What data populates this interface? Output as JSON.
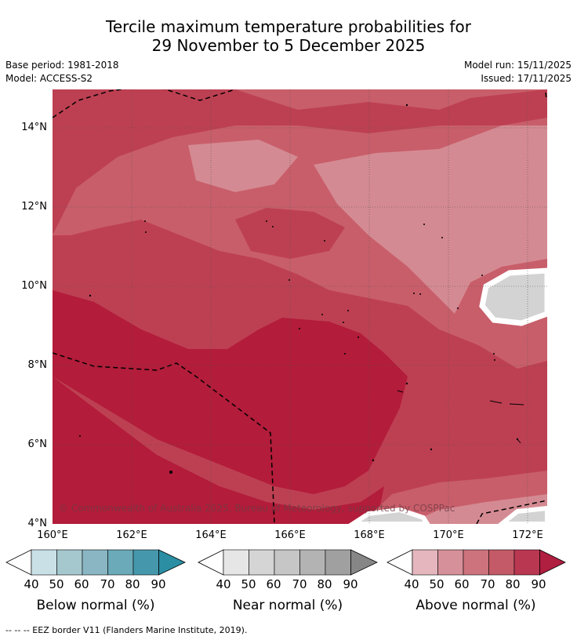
{
  "title": {
    "line1": "Tercile maximum temperature probabilities for",
    "line2": "29 November to 5 December 2025"
  },
  "meta": {
    "base_period": "Base period: 1981-2018",
    "model": "Model: ACCESS-S2",
    "model_run": "Model run: 15/11/2025",
    "issued": "Issued: 17/11/2025"
  },
  "map": {
    "lat_labels": [
      "14°N",
      "12°N",
      "10°N",
      "8°N",
      "6°N",
      "4°N"
    ],
    "lon_labels": [
      "160°E",
      "162°E",
      "164°E",
      "166°E",
      "168°E",
      "170°E",
      "172°E"
    ],
    "extent": {
      "lon_min": 160,
      "lon_max": 172.5,
      "lat_min": 4,
      "lat_max": 15
    },
    "colors": {
      "above_90": "#b31c3a",
      "above_80": "#bd4052",
      "above_70": "#c85e6a",
      "above_60": "#d48a92",
      "near_normal": "#d3d3d3",
      "eez": "#000000"
    },
    "copyright": "© Commonwealth of Australia 2025, Bureau of Meteorology, supported by COSPPac"
  },
  "colorbars": [
    {
      "name": "below",
      "title": "Below normal (%)",
      "ticks": [
        "40",
        "50",
        "60",
        "70",
        "80",
        "90"
      ],
      "colors": [
        "#c8e0e6",
        "#a5c8cf",
        "#89b6c2",
        "#6aaab9",
        "#4598ab",
        "#2b8ea3"
      ]
    },
    {
      "name": "near",
      "title": "Near normal (%)",
      "ticks": [
        "40",
        "50",
        "60",
        "70",
        "80",
        "90"
      ],
      "colors": [
        "#e6e6e6",
        "#d5d5d5",
        "#c6c6c6",
        "#b3b3b3",
        "#a0a0a0",
        "#868686"
      ]
    },
    {
      "name": "above",
      "title": "Above normal (%)",
      "ticks": [
        "40",
        "50",
        "60",
        "70",
        "80",
        "90"
      ],
      "colors": [
        "#e5b6bd",
        "#d69099",
        "#cd737d",
        "#c45a67",
        "#ba3752",
        "#b01e40"
      ]
    }
  ],
  "footnote": "--  --  -- EEZ border V11 (Flanders Marine Institute, 2019)."
}
